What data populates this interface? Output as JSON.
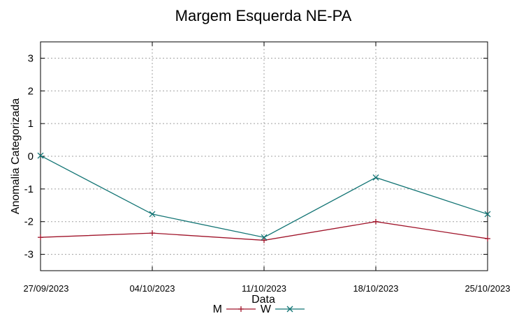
{
  "chart_data": {
    "type": "line",
    "title": "Margem Esquerda NE-PA",
    "xlabel": "Data",
    "ylabel": "Anomalia Categorizada",
    "categories": [
      "27/09/2023",
      "04/10/2023",
      "11/10/2023",
      "18/10/2023",
      "25/10/2023"
    ],
    "ylim": [
      -3.5,
      3.5
    ],
    "yticks": [
      -3,
      -2,
      -1,
      0,
      1,
      2,
      3
    ],
    "grid": true,
    "legend_position": "bottom-center",
    "series": [
      {
        "name": "M",
        "marker": "plus",
        "color": "#a0142a",
        "values": [
          -2.48,
          -2.35,
          -2.57,
          -2.0,
          -2.52
        ]
      },
      {
        "name": "W",
        "marker": "cross",
        "color": "#127474",
        "values": [
          0.02,
          -1.77,
          -2.48,
          -0.65,
          -1.77
        ]
      }
    ]
  }
}
